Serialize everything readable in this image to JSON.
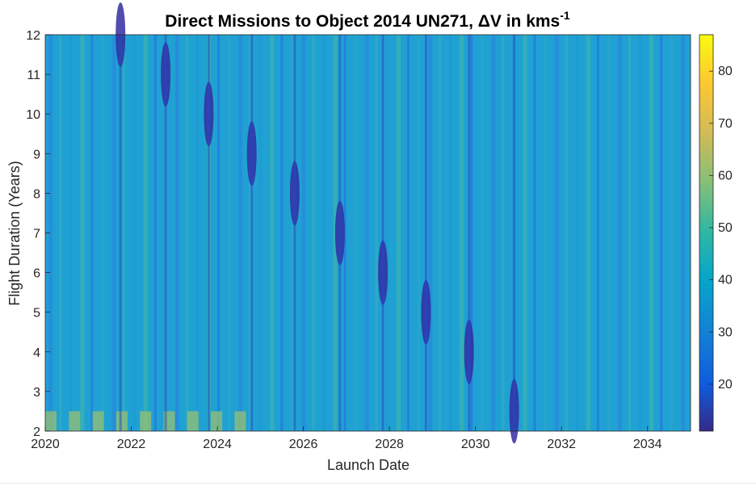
{
  "chart_data": {
    "type": "heatmap",
    "title": "Direct Missions to Object 2014 UN271, ΔV in kms",
    "title_superscript": "-1",
    "xlabel": "Launch Date",
    "ylabel": "Flight Duration (Years)",
    "xlim": [
      2020,
      2035
    ],
    "ylim": [
      2,
      12
    ],
    "xticks": [
      "2020",
      "2022",
      "2024",
      "2026",
      "2028",
      "2030",
      "2032",
      "2034"
    ],
    "xtick_values": [
      2020,
      2022,
      2024,
      2026,
      2028,
      2030,
      2032,
      2034
    ],
    "yticks": [
      "2",
      "3",
      "4",
      "5",
      "6",
      "7",
      "8",
      "9",
      "10",
      "11",
      "12"
    ],
    "ytick_values": [
      2,
      3,
      4,
      5,
      6,
      7,
      8,
      9,
      10,
      11,
      12
    ],
    "colorbar": {
      "colormap": "parula",
      "range": [
        11,
        87
      ],
      "ticks": [
        "20",
        "30",
        "40",
        "50",
        "60",
        "70",
        "80"
      ],
      "tick_values": [
        20,
        30,
        40,
        50,
        60,
        70,
        80
      ]
    },
    "minima_valleys": [
      {
        "launch_year": 2021.75,
        "flight_duration_years": 12
      },
      {
        "launch_year": 2022.8,
        "flight_duration_years": 11
      },
      {
        "launch_year": 2023.8,
        "flight_duration_years": 10
      },
      {
        "launch_year": 2024.8,
        "flight_duration_years": 9
      },
      {
        "launch_year": 2025.8,
        "flight_duration_years": 8
      },
      {
        "launch_year": 2026.85,
        "flight_duration_years": 7
      },
      {
        "launch_year": 2027.85,
        "flight_duration_years": 6
      },
      {
        "launch_year": 2028.85,
        "flight_duration_years": 5
      },
      {
        "launch_year": 2029.85,
        "flight_duration_years": 4
      },
      {
        "launch_year": 2030.9,
        "flight_duration_years": 2.5
      }
    ],
    "grid": false
  }
}
